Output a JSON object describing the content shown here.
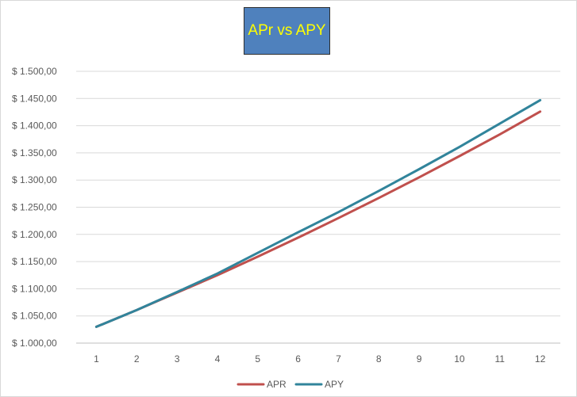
{
  "chart_data": {
    "type": "line",
    "title": "APr vs APY",
    "x": [
      "1",
      "2",
      "3",
      "4",
      "5",
      "6",
      "7",
      "8",
      "9",
      "10",
      "11",
      "12"
    ],
    "yticks": [
      "$ 1.000,00",
      "$ 1.050,00",
      "$ 1.100,00",
      "$ 1.150,00",
      "$ 1.200,00",
      "$ 1.250,00",
      "$ 1.300,00",
      "$ 1.350,00",
      "$ 1.400,00",
      "$ 1.450,00",
      "$ 1.500,00"
    ],
    "ylim": [
      1000,
      1500
    ],
    "grid": true,
    "legend": "bottom",
    "series": [
      {
        "name": "APR",
        "color": "#c0504d",
        "values": [
          1030,
          1061,
          1093,
          1125,
          1159,
          1194,
          1230,
          1267,
          1305,
          1344,
          1384,
          1426
        ]
      },
      {
        "name": "APY",
        "color": "#31849b",
        "values": [
          1030,
          1061,
          1094,
          1128,
          1166,
          1204,
          1241,
          1280,
          1320,
          1361,
          1404,
          1447
        ]
      }
    ]
  }
}
